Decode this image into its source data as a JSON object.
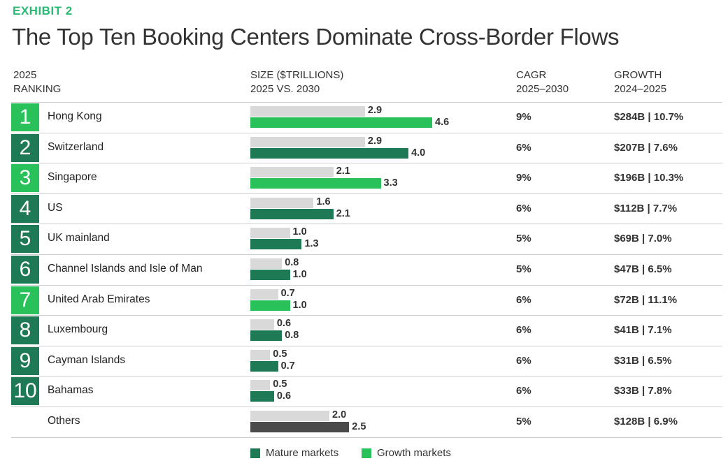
{
  "exhibit": "EXHIBIT 2",
  "title": "The Top Ten Booking Centers Dominate Cross-Border Flows",
  "headers": {
    "ranking": [
      "2025",
      "RANKING"
    ],
    "size": [
      "SIZE ($TRILLIONS)",
      "2025 VS. 2030"
    ],
    "cagr": [
      "CAGR",
      "2025–2030"
    ],
    "growth": [
      "GROWTH",
      "2024–2025"
    ]
  },
  "colors": {
    "mature": "#1e7a55",
    "growth": "#29c15a",
    "grey": "#d9d9d9",
    "others": "#4a4a4a",
    "exhibit": "#29ba74"
  },
  "chart_data": {
    "type": "bar",
    "categories": [
      "Hong Kong",
      "Switzerland",
      "Singapore",
      "US",
      "UK mainland",
      "Channel Islands and Isle of Man",
      "United Arab Emirates",
      "Luxembourg",
      "Cayman Islands",
      "Bahamas",
      "Others"
    ],
    "ranks": [
      "1",
      "2",
      "3",
      "4",
      "5",
      "6",
      "7",
      "8",
      "9",
      "10",
      ""
    ],
    "market_type": [
      "growth",
      "mature",
      "growth",
      "mature",
      "mature",
      "mature",
      "growth",
      "mature",
      "mature",
      "mature",
      "others"
    ],
    "series": [
      {
        "values": [
          2.9,
          2.9,
          2.1,
          1.6,
          1.0,
          0.8,
          0.7,
          0.6,
          0.5,
          0.5,
          2.0
        ]
      },
      {
        "values": [
          4.6,
          4.0,
          3.3,
          2.1,
          1.3,
          1.0,
          1.0,
          0.8,
          0.7,
          0.6,
          2.5
        ]
      }
    ],
    "value_labels_2025": [
      "2.9",
      "2.9",
      "2.1",
      "1.6",
      "1.0",
      "0.8",
      "0.7",
      "0.6",
      "0.5",
      "0.5",
      "2.0"
    ],
    "value_labels_2030": [
      "4.6",
      "4.0",
      "3.3",
      "2.1",
      "1.3",
      "1.0",
      "1.0",
      "0.8",
      "0.7",
      "0.6",
      "2.5"
    ],
    "cagr": [
      "9%",
      "6%",
      "9%",
      "6%",
      "5%",
      "5%",
      "6%",
      "6%",
      "6%",
      "6%",
      "5%"
    ],
    "growth": [
      "$284B | 10.7%",
      "$207B | 7.6%",
      "$196B | 10.3%",
      "$112B | 7.7%",
      "$69B | 7.0%",
      "$47B | 6.5%",
      "$72B | 11.1%",
      "$41B | 7.1%",
      "$31B | 6.5%",
      "$33B | 7.8%",
      "$128B | 6.9%"
    ],
    "xlim": [
      0,
      4.6
    ]
  },
  "legend": [
    {
      "label": "Mature markets",
      "color": "#1e7a55"
    },
    {
      "label": "Growth markets",
      "color": "#29c15a"
    }
  ]
}
